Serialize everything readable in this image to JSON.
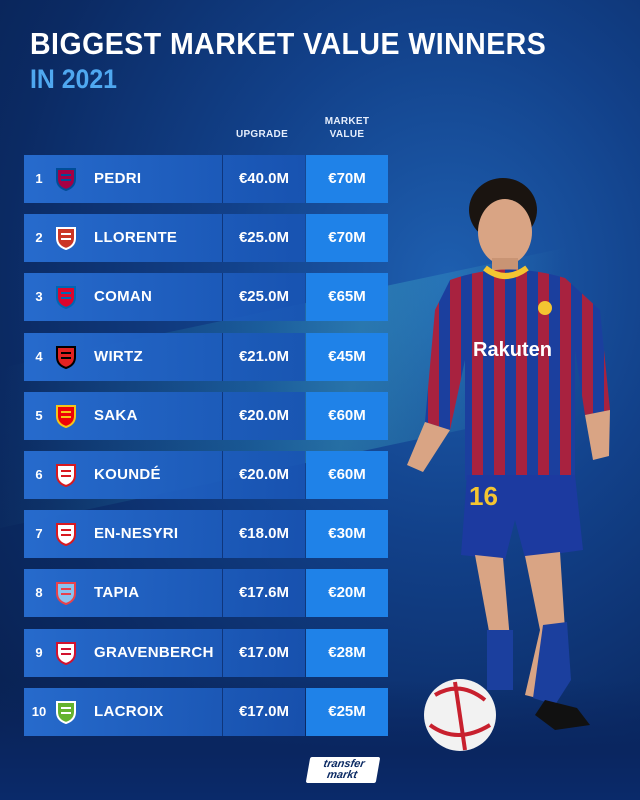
{
  "title": "BIGGEST MARKET VALUE WINNERS",
  "subtitle": "IN 2021",
  "columns": {
    "upgrade": "UPGRADE",
    "market_value_line1": "MARKET",
    "market_value_line2": "VALUE"
  },
  "rows": [
    {
      "rank": "1",
      "name": "PEDRI",
      "upgrade": "€40.0M",
      "value": "€70M",
      "club_icon": "fc-barcelona-crest-icon"
    },
    {
      "rank": "2",
      "name": "LLORENTE",
      "upgrade": "€25.0M",
      "value": "€70M",
      "club_icon": "atletico-madrid-crest-icon"
    },
    {
      "rank": "3",
      "name": "COMAN",
      "upgrade": "€25.0M",
      "value": "€65M",
      "club_icon": "bayern-munich-crest-icon"
    },
    {
      "rank": "4",
      "name": "WIRTZ",
      "upgrade": "€21.0M",
      "value": "€45M",
      "club_icon": "bayer-leverkusen-crest-icon"
    },
    {
      "rank": "5",
      "name": "SAKA",
      "upgrade": "€20.0M",
      "value": "€60M",
      "club_icon": "arsenal-crest-icon"
    },
    {
      "rank": "6",
      "name": "KOUNDÉ",
      "upgrade": "€20.0M",
      "value": "€60M",
      "club_icon": "sevilla-crest-icon"
    },
    {
      "rank": "7",
      "name": "EN-NESYRI",
      "upgrade": "€18.0M",
      "value": "€30M",
      "club_icon": "sevilla-crest-icon"
    },
    {
      "rank": "8",
      "name": "TAPIA",
      "upgrade": "€17.6M",
      "value": "€20M",
      "club_icon": "celta-vigo-crest-icon"
    },
    {
      "rank": "9",
      "name": "GRAVENBERCH",
      "upgrade": "€17.0M",
      "value": "€28M",
      "club_icon": "ajax-crest-icon"
    },
    {
      "rank": "10",
      "name": "LACROIX",
      "upgrade": "€17.0M",
      "value": "€25M",
      "club_icon": "wolfsburg-crest-icon"
    }
  ],
  "player_photo": {
    "shirt_sponsor": "Rakuten",
    "shirt_number": "16"
  },
  "brand": {
    "line1": "transfer",
    "line2": "markt"
  },
  "colors": {
    "accent": "#4fa8f0",
    "value_box": "#1f82e8",
    "row": "#2868c8"
  }
}
